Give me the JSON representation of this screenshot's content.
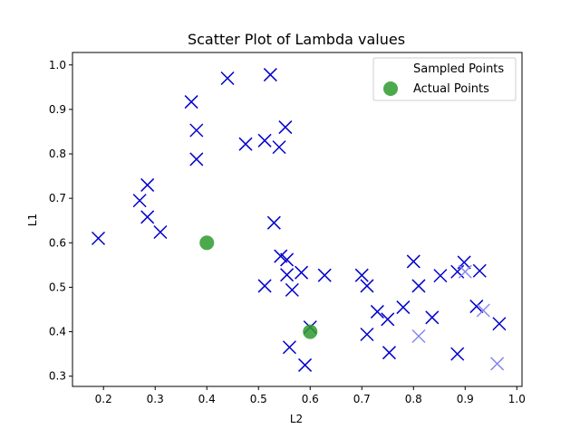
{
  "chart_data": {
    "type": "scatter",
    "title": "Scatter Plot of Lambda values",
    "xlabel": "L2",
    "ylabel": "L1",
    "xlim": [
      0.14,
      1.01
    ],
    "ylim": [
      0.277,
      1.028
    ],
    "xticks": [
      0.2,
      0.3,
      0.4,
      0.5,
      0.6,
      0.7,
      0.8,
      0.9,
      1.0
    ],
    "xtick_labels": [
      "0.2",
      "0.3",
      "0.4",
      "0.5",
      "0.6",
      "0.7",
      "0.8",
      "0.9",
      "1.0"
    ],
    "yticks": [
      0.3,
      0.4,
      0.5,
      0.6,
      0.7,
      0.8,
      0.9,
      1.0
    ],
    "ytick_labels": [
      "0.3",
      "0.4",
      "0.5",
      "0.6",
      "0.7",
      "0.8",
      "0.9",
      "1.0"
    ],
    "grid": false,
    "legend_position": "top-right",
    "series": [
      {
        "name": "Sampled Points",
        "marker": "x",
        "color": "#0000cc",
        "points": [
          {
            "x": 0.19,
            "y": 0.61
          },
          {
            "x": 0.27,
            "y": 0.695
          },
          {
            "x": 0.285,
            "y": 0.73
          },
          {
            "x": 0.285,
            "y": 0.658
          },
          {
            "x": 0.31,
            "y": 0.624
          },
          {
            "x": 0.37,
            "y": 0.917
          },
          {
            "x": 0.38,
            "y": 0.853
          },
          {
            "x": 0.38,
            "y": 0.788
          },
          {
            "x": 0.44,
            "y": 0.97
          },
          {
            "x": 0.475,
            "y": 0.822
          },
          {
            "x": 0.512,
            "y": 0.83
          },
          {
            "x": 0.523,
            "y": 0.978
          },
          {
            "x": 0.53,
            "y": 0.645
          },
          {
            "x": 0.54,
            "y": 0.815
          },
          {
            "x": 0.552,
            "y": 0.86
          },
          {
            "x": 0.512,
            "y": 0.503
          },
          {
            "x": 0.543,
            "y": 0.57
          },
          {
            "x": 0.555,
            "y": 0.562
          },
          {
            "x": 0.555,
            "y": 0.528
          },
          {
            "x": 0.565,
            "y": 0.494
          },
          {
            "x": 0.583,
            "y": 0.533
          },
          {
            "x": 0.56,
            "y": 0.365
          },
          {
            "x": 0.6,
            "y": 0.41
          },
          {
            "x": 0.59,
            "y": 0.325
          },
          {
            "x": 0.628,
            "y": 0.527
          },
          {
            "x": 0.7,
            "y": 0.527
          },
          {
            "x": 0.71,
            "y": 0.503
          },
          {
            "x": 0.71,
            "y": 0.394
          },
          {
            "x": 0.73,
            "y": 0.445
          },
          {
            "x": 0.75,
            "y": 0.428
          },
          {
            "x": 0.753,
            "y": 0.353
          },
          {
            "x": 0.78,
            "y": 0.455
          },
          {
            "x": 0.8,
            "y": 0.558
          },
          {
            "x": 0.81,
            "y": 0.503
          },
          {
            "x": 0.836,
            "y": 0.432
          },
          {
            "x": 0.852,
            "y": 0.526
          },
          {
            "x": 0.885,
            "y": 0.535
          },
          {
            "x": 0.898,
            "y": 0.556
          },
          {
            "x": 0.928,
            "y": 0.537
          },
          {
            "x": 0.922,
            "y": 0.457
          },
          {
            "x": 0.885,
            "y": 0.35
          },
          {
            "x": 0.966,
            "y": 0.418
          }
        ]
      },
      {
        "name": "",
        "marker": "x",
        "color": "#8888ee",
        "points": [
          {
            "x": 0.81,
            "y": 0.39
          },
          {
            "x": 0.9,
            "y": 0.535
          },
          {
            "x": 0.935,
            "y": 0.448
          },
          {
            "x": 0.962,
            "y": 0.328
          }
        ]
      },
      {
        "name": "Actual Points",
        "marker": "circle",
        "color": "#2e9a2e",
        "points": [
          {
            "x": 0.4,
            "y": 0.6
          },
          {
            "x": 0.6,
            "y": 0.4
          }
        ]
      }
    ]
  }
}
